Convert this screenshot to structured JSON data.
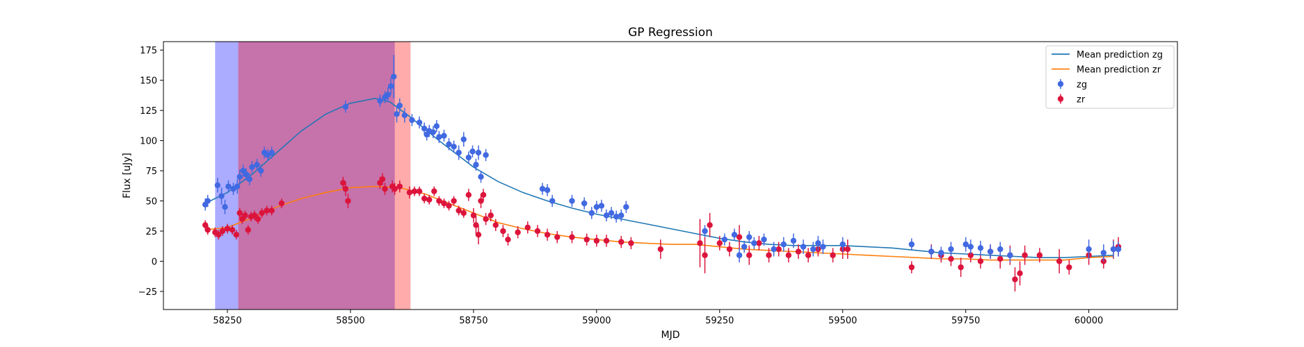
{
  "chart_data": {
    "type": "scatter",
    "title": "GP Regression",
    "xlabel": "MJD",
    "ylabel": "Flux [uJy]",
    "xlim": [
      58120,
      60180
    ],
    "ylim": [
      -40,
      182
    ],
    "xticks": [
      58250,
      58500,
      58750,
      59000,
      59250,
      59500,
      59750,
      60000
    ],
    "yticks": [
      -25,
      0,
      25,
      50,
      75,
      100,
      125,
      150,
      175
    ],
    "legend_position": "top-right",
    "colors": {
      "zg_line": "#1f77b4",
      "zr_line": "#ff7f0e",
      "zg_points": "#4169e1",
      "zr_points": "#dc143c",
      "blue_span": "#0000ff",
      "red_span": "#ff0000"
    },
    "spans": [
      {
        "x0": 58225,
        "x1": 58590,
        "color": "blue_span"
      },
      {
        "x0": 58272,
        "x1": 58622,
        "color": "red_span"
      }
    ],
    "legend": [
      {
        "label": "Mean prediction zg",
        "kind": "line",
        "color": "zg_line"
      },
      {
        "label": "Mean prediction zr",
        "kind": "line",
        "color": "zr_line"
      },
      {
        "label": "zg",
        "kind": "errorbar",
        "color": "zg_points"
      },
      {
        "label": "zr",
        "kind": "errorbar",
        "color": "zr_points"
      }
    ],
    "series": [
      {
        "name": "Mean prediction zg",
        "kind": "line",
        "color": "zg_line",
        "x": [
          58205,
          58250,
          58300,
          58350,
          58400,
          58450,
          58500,
          58550,
          58580,
          58620,
          58680,
          58750,
          58800,
          58850,
          58900,
          58950,
          59000,
          59050,
          59100,
          59150,
          59200,
          59250,
          59300,
          59350,
          59400,
          59450,
          59500,
          59550,
          59600,
          59650,
          59700,
          59750,
          59800,
          59850,
          59900,
          59950,
          60000,
          60050
        ],
        "y": [
          48,
          57,
          72,
          90,
          108,
          122,
          131,
          135,
          132,
          120,
          100,
          78,
          66,
          57,
          50,
          44,
          39,
          35,
          31,
          27,
          23,
          19,
          16,
          14,
          13,
          13,
          13,
          12,
          11,
          9,
          7,
          6,
          5,
          4,
          3,
          3,
          4,
          5
        ]
      },
      {
        "name": "Mean prediction zr",
        "kind": "line",
        "color": "zr_line",
        "x": [
          58205,
          58250,
          58300,
          58350,
          58400,
          58450,
          58500,
          58550,
          58600,
          58650,
          58700,
          58750,
          58800,
          58850,
          58900,
          58950,
          59000,
          59050,
          59100,
          59150,
          59200,
          59250,
          59300,
          59350,
          59400,
          59450,
          59500,
          59550,
          59600,
          59650,
          59700,
          59750,
          59800,
          59850,
          59900,
          59950,
          60000,
          60050
        ],
        "y": [
          26,
          28,
          36,
          45,
          52,
          57,
          61,
          62,
          61,
          56,
          48,
          40,
          32,
          27,
          23,
          20,
          18,
          16,
          15,
          14,
          14,
          12,
          10,
          9,
          8,
          7,
          6,
          5,
          4,
          3,
          2,
          2,
          1,
          1,
          1,
          1,
          3,
          4
        ]
      },
      {
        "name": "zg",
        "kind": "errorbar",
        "color": "zg_points",
        "x": [
          58205,
          58210,
          58230,
          58238,
          58245,
          58252,
          58262,
          58270,
          58275,
          58282,
          58288,
          58295,
          58300,
          58310,
          58318,
          58325,
          58332,
          58340,
          58490,
          58560,
          58570,
          58576,
          58582,
          58588,
          58594,
          58600,
          58610,
          58625,
          58640,
          58650,
          58655,
          58660,
          58668,
          58675,
          58680,
          58690,
          58700,
          58710,
          58720,
          58730,
          58740,
          58748,
          58755,
          58760,
          58765,
          58775,
          58890,
          58900,
          58910,
          58950,
          58975,
          58990,
          59000,
          59010,
          59020,
          59030,
          59040,
          59050,
          59060,
          59220,
          59260,
          59280,
          59290,
          59300,
          59310,
          59320,
          59340,
          59360,
          59380,
          59400,
          59420,
          59440,
          59450,
          59460,
          59500,
          59640,
          59680,
          59700,
          59720,
          59750,
          59760,
          59780,
          59800,
          59820,
          59840,
          60000,
          60030,
          60050,
          60060
        ],
        "y": [
          47,
          50,
          63,
          54,
          45,
          62,
          60,
          62,
          70,
          75,
          72,
          68,
          78,
          80,
          75,
          90,
          88,
          90,
          128,
          133,
          136,
          138,
          145,
          153,
          122,
          129,
          121,
          117,
          115,
          110,
          105,
          108,
          107,
          112,
          103,
          104,
          97,
          95,
          90,
          101,
          86,
          91,
          80,
          90,
          70,
          88,
          60,
          59,
          50,
          50,
          48,
          40,
          45,
          46,
          38,
          40,
          37,
          38,
          45,
          25,
          18,
          22,
          5,
          12,
          20,
          15,
          18,
          10,
          14,
          17,
          12,
          10,
          15,
          12,
          14,
          14,
          8,
          7,
          10,
          14,
          12,
          11,
          8,
          10,
          5,
          10,
          7,
          10,
          10
        ],
        "err": [
          5,
          5,
          6,
          7,
          6,
          5,
          5,
          6,
          6,
          5,
          5,
          5,
          5,
          5,
          5,
          5,
          5,
          5,
          5,
          5,
          5,
          6,
          7,
          18,
          7,
          6,
          6,
          5,
          5,
          5,
          5,
          5,
          5,
          5,
          5,
          5,
          5,
          5,
          6,
          6,
          5,
          5,
          5,
          6,
          5,
          5,
          5,
          5,
          5,
          5,
          5,
          5,
          5,
          5,
          5,
          5,
          5,
          5,
          5,
          5,
          5,
          5,
          6,
          5,
          5,
          5,
          5,
          6,
          6,
          6,
          6,
          6,
          6,
          6,
          6,
          5,
          5,
          5,
          6,
          6,
          6,
          6,
          6,
          6,
          6,
          8,
          7,
          7,
          6
        ]
      },
      {
        "name": "zr",
        "kind": "errorbar",
        "color": "zr_points",
        "x": [
          58205,
          58210,
          58225,
          58232,
          58240,
          58250,
          58260,
          58268,
          58275,
          58280,
          58286,
          58292,
          58298,
          58305,
          58312,
          58320,
          58330,
          58340,
          58360,
          58485,
          58490,
          58495,
          58560,
          58565,
          58570,
          58585,
          58590,
          58600,
          58620,
          58630,
          58640,
          58650,
          58660,
          58670,
          58680,
          58690,
          58700,
          58710,
          58720,
          58730,
          58740,
          58750,
          58755,
          58760,
          58765,
          58770,
          58775,
          58785,
          58795,
          58810,
          58820,
          58840,
          58860,
          58880,
          58900,
          58920,
          58950,
          58980,
          59000,
          59020,
          59050,
          59070,
          59130,
          59210,
          59220,
          59230,
          59250,
          59270,
          59290,
          59310,
          59330,
          59350,
          59370,
          59390,
          59410,
          59430,
          59450,
          59480,
          59500,
          59510,
          59640,
          59680,
          59700,
          59720,
          59740,
          59760,
          59780,
          59800,
          59820,
          59840,
          59850,
          59860,
          59870,
          59900,
          59940,
          59960,
          60000,
          60030,
          60050,
          60060
        ],
        "y": [
          30,
          26,
          24,
          22,
          25,
          27,
          26,
          22,
          40,
          35,
          38,
          26,
          37,
          38,
          35,
          40,
          42,
          42,
          48,
          65,
          60,
          50,
          65,
          68,
          60,
          62,
          60,
          62,
          57,
          58,
          58,
          52,
          51,
          58,
          50,
          48,
          46,
          50,
          42,
          40,
          55,
          38,
          30,
          22,
          50,
          55,
          35,
          38,
          30,
          25,
          18,
          24,
          28,
          25,
          22,
          20,
          20,
          18,
          17,
          17,
          16,
          15,
          10,
          15,
          5,
          30,
          15,
          10,
          20,
          5,
          15,
          5,
          10,
          5,
          8,
          5,
          10,
          5,
          10,
          10,
          -5,
          8,
          5,
          2,
          -5,
          5,
          0,
          8,
          2,
          5,
          -15,
          -10,
          5,
          5,
          0,
          -5,
          5,
          0,
          10,
          12
        ],
        "err": [
          4,
          4,
          4,
          4,
          4,
          4,
          4,
          4,
          4,
          4,
          4,
          4,
          4,
          4,
          4,
          4,
          4,
          4,
          4,
          5,
          6,
          6,
          5,
          5,
          5,
          5,
          5,
          5,
          5,
          4,
          4,
          4,
          4,
          4,
          4,
          4,
          4,
          4,
          4,
          4,
          5,
          6,
          8,
          8,
          6,
          5,
          5,
          5,
          5,
          5,
          5,
          5,
          5,
          5,
          5,
          5,
          5,
          5,
          5,
          5,
          5,
          5,
          8,
          20,
          15,
          10,
          6,
          6,
          10,
          8,
          6,
          6,
          6,
          6,
          6,
          6,
          6,
          6,
          8,
          8,
          5,
          6,
          6,
          6,
          8,
          6,
          6,
          6,
          8,
          8,
          10,
          10,
          8,
          6,
          10,
          6,
          8,
          6,
          8,
          8
        ]
      }
    ]
  }
}
